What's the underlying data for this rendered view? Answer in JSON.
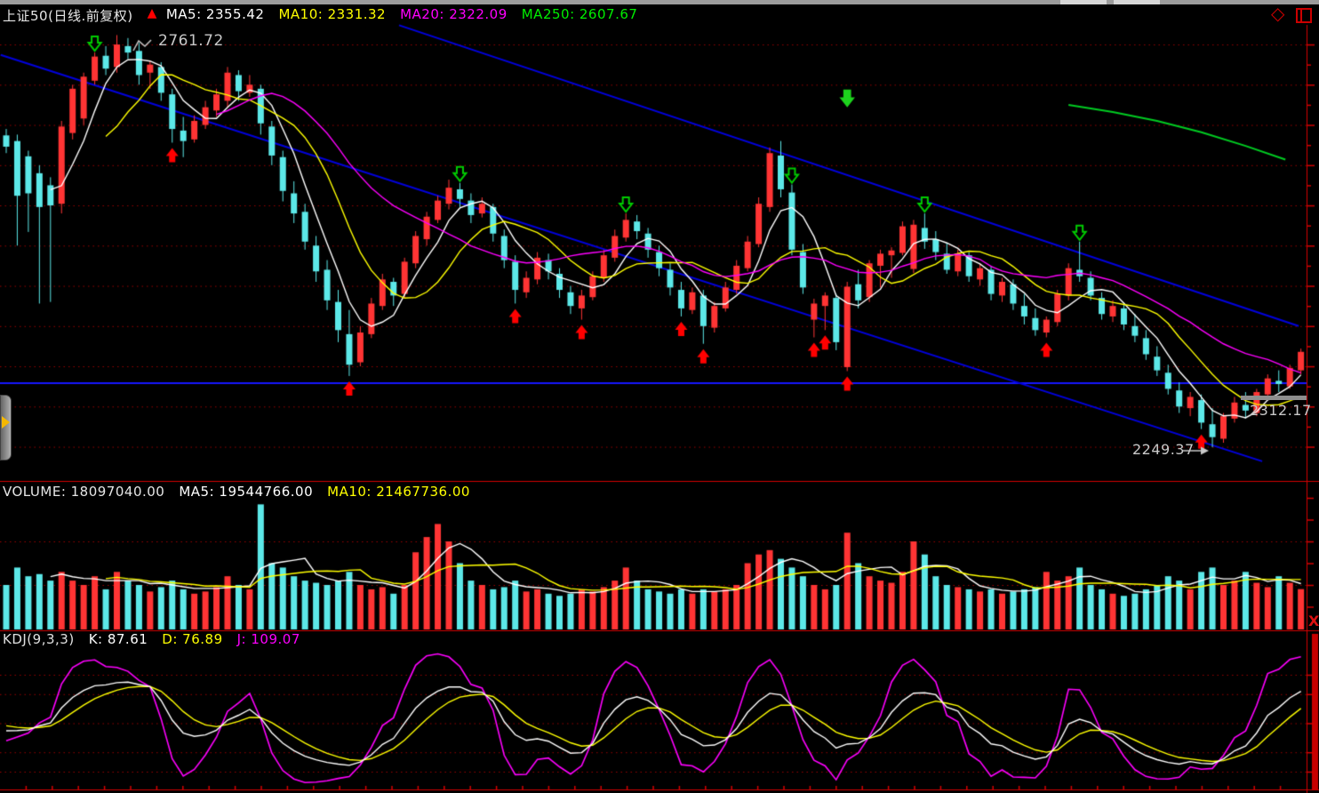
{
  "window": {
    "icons": {
      "diamond": "◇",
      "close_x": "X"
    }
  },
  "header": {
    "title": "上证50(日线.前复权)",
    "signal_arrow": "▲",
    "ma_labels": [
      {
        "text": "MA5: 2355.42",
        "color": "#ffffff"
      },
      {
        "text": "MA10: 2331.32",
        "color": "#ffff00"
      },
      {
        "text": "MA20: 2322.09",
        "color": "#ff00ff"
      },
      {
        "text": "MA250: 2607.67",
        "color": "#00ee00"
      }
    ]
  },
  "volume_header": {
    "labels": [
      {
        "text": "VOLUME: 18097040.00",
        "color": "#e6e6e6"
      },
      {
        "text": "MA5: 19544766.00",
        "color": "#ffffff"
      },
      {
        "text": "MA10: 21467736.00",
        "color": "#ffff00"
      }
    ]
  },
  "kdj_header": {
    "labels": [
      {
        "text": "KDJ(9,3,3)",
        "color": "#e0e0e0"
      },
      {
        "text": "K: 87.61",
        "color": "#ffffff"
      },
      {
        "text": "D: 76.89",
        "color": "#ffff00"
      },
      {
        "text": "J: 109.07",
        "color": "#ff00ff"
      }
    ]
  },
  "annotations": {
    "peak_label": "2761.72",
    "level_label": "2312.17",
    "low_label": "2249.37"
  },
  "chart_data": {
    "type": "candlestick",
    "title": "上证50(日线.前复权)",
    "panels": [
      "price",
      "volume",
      "kdj"
    ],
    "price_axis": {
      "min": 2250,
      "max": 2760,
      "grid_step": 50
    },
    "volume_axis": {
      "grid_lines_millions": [
        20,
        40
      ],
      "tick_step_millions": 10,
      "max_millions": 60
    },
    "kdj_axis": {
      "grid_values": [
        0,
        20,
        50,
        80,
        100
      ]
    },
    "indicator_params": {
      "ma_periods": [
        5,
        10,
        20,
        250
      ],
      "volume_ma_periods": [
        5,
        10
      ],
      "kdj": [
        9,
        3,
        3
      ]
    },
    "candles": [
      [
        2637,
        2645,
        2615,
        2623
      ],
      [
        2630,
        2638,
        2500,
        2562
      ],
      [
        2611,
        2618,
        2517,
        2565
      ],
      [
        2590,
        2600,
        2428,
        2548
      ],
      [
        2575,
        2585,
        2430,
        2550
      ],
      [
        2552,
        2655,
        2540,
        2648
      ],
      [
        2640,
        2700,
        2632,
        2695
      ],
      [
        2658,
        2715,
        2650,
        2710
      ],
      [
        2705,
        2740,
        2700,
        2735
      ],
      [
        2736,
        2748,
        2712,
        2720
      ],
      [
        2722,
        2761.72,
        2715,
        2750
      ],
      [
        2748,
        2758,
        2732,
        2740
      ],
      [
        2742,
        2752,
        2700,
        2712
      ],
      [
        2715,
        2730,
        2695,
        2725
      ],
      [
        2722,
        2728,
        2680,
        2690
      ],
      [
        2688,
        2695,
        2628,
        2645
      ],
      [
        2643,
        2660,
        2610,
        2630
      ],
      [
        2632,
        2662,
        2628,
        2655
      ],
      [
        2650,
        2680,
        2645,
        2672
      ],
      [
        2668,
        2695,
        2660,
        2688
      ],
      [
        2680,
        2722,
        2672,
        2715
      ],
      [
        2712,
        2718,
        2680,
        2692
      ],
      [
        2690,
        2712,
        2685,
        2700
      ],
      [
        2695,
        2700,
        2638,
        2652
      ],
      [
        2648,
        2655,
        2600,
        2612
      ],
      [
        2610,
        2618,
        2555,
        2568
      ],
      [
        2565,
        2580,
        2528,
        2540
      ],
      [
        2542,
        2552,
        2495,
        2505
      ],
      [
        2500,
        2512,
        2455,
        2468
      ],
      [
        2470,
        2482,
        2420,
        2432
      ],
      [
        2430,
        2445,
        2380,
        2395
      ],
      [
        2390,
        2420,
        2338,
        2352
      ],
      [
        2355,
        2400,
        2350,
        2392
      ],
      [
        2390,
        2435,
        2385,
        2428
      ],
      [
        2425,
        2465,
        2420,
        2458
      ],
      [
        2455,
        2460,
        2425,
        2438
      ],
      [
        2440,
        2485,
        2435,
        2480
      ],
      [
        2478,
        2518,
        2472,
        2512
      ],
      [
        2508,
        2542,
        2500,
        2536
      ],
      [
        2532,
        2562,
        2528,
        2556
      ],
      [
        2552,
        2582,
        2545,
        2572
      ],
      [
        2570,
        2578,
        2548,
        2558
      ],
      [
        2556,
        2565,
        2528,
        2538
      ],
      [
        2540,
        2560,
        2535,
        2552
      ],
      [
        2548,
        2552,
        2505,
        2515
      ],
      [
        2512,
        2520,
        2472,
        2482
      ],
      [
        2480,
        2488,
        2428,
        2445
      ],
      [
        2442,
        2468,
        2435,
        2460
      ],
      [
        2458,
        2492,
        2452,
        2485
      ],
      [
        2482,
        2490,
        2458,
        2468
      ],
      [
        2465,
        2472,
        2435,
        2445
      ],
      [
        2442,
        2450,
        2415,
        2425
      ],
      [
        2422,
        2445,
        2408,
        2438
      ],
      [
        2436,
        2468,
        2432,
        2462
      ],
      [
        2460,
        2495,
        2455,
        2488
      ],
      [
        2485,
        2520,
        2480,
        2512
      ],
      [
        2510,
        2540,
        2505,
        2532
      ],
      [
        2530,
        2538,
        2508,
        2518
      ],
      [
        2515,
        2522,
        2485,
        2495
      ],
      [
        2492,
        2500,
        2462,
        2472
      ],
      [
        2470,
        2478,
        2438,
        2448
      ],
      [
        2445,
        2455,
        2412,
        2422
      ],
      [
        2420,
        2448,
        2415,
        2442
      ],
      [
        2438,
        2445,
        2378,
        2400
      ],
      [
        2398,
        2430,
        2392,
        2425
      ],
      [
        2422,
        2455,
        2418,
        2448
      ],
      [
        2445,
        2482,
        2440,
        2475
      ],
      [
        2472,
        2512,
        2468,
        2505
      ],
      [
        2502,
        2560,
        2498,
        2552
      ],
      [
        2548,
        2622,
        2542,
        2615
      ],
      [
        2612,
        2630,
        2560,
        2570
      ],
      [
        2566,
        2576,
        2488,
        2495
      ],
      [
        2492,
        2502,
        2440,
        2448
      ],
      [
        2408,
        2434,
        2386,
        2428
      ],
      [
        2425,
        2442,
        2395,
        2438
      ],
      [
        2435,
        2440,
        2370,
        2380
      ],
      [
        2349,
        2455,
        2344,
        2449
      ],
      [
        2452,
        2470,
        2422,
        2432
      ],
      [
        2436,
        2482,
        2430,
        2478
      ],
      [
        2475,
        2495,
        2448,
        2490
      ],
      [
        2488,
        2498,
        2460,
        2494
      ],
      [
        2491,
        2530,
        2488,
        2524
      ],
      [
        2471,
        2532,
        2466,
        2526
      ],
      [
        2522,
        2540,
        2496,
        2505
      ],
      [
        2508,
        2518,
        2482,
        2492
      ],
      [
        2490,
        2503,
        2465,
        2470
      ],
      [
        2468,
        2495,
        2462,
        2490
      ],
      [
        2488,
        2492,
        2455,
        2462
      ],
      [
        2458,
        2478,
        2450,
        2472
      ],
      [
        2470,
        2475,
        2432,
        2440
      ],
      [
        2438,
        2460,
        2430,
        2455
      ],
      [
        2452,
        2458,
        2420,
        2428
      ],
      [
        2425,
        2440,
        2402,
        2412
      ],
      [
        2410,
        2422,
        2388,
        2395
      ],
      [
        2392,
        2412,
        2386,
        2408
      ],
      [
        2405,
        2445,
        2400,
        2440
      ],
      [
        2438,
        2478,
        2432,
        2472
      ],
      [
        2470,
        2505,
        2455,
        2462
      ],
      [
        2460,
        2468,
        2432,
        2438
      ],
      [
        2435,
        2442,
        2408,
        2415
      ],
      [
        2412,
        2432,
        2405,
        2425
      ],
      [
        2422,
        2428,
        2395,
        2402
      ],
      [
        2400,
        2415,
        2380,
        2388
      ],
      [
        2385,
        2395,
        2358,
        2365
      ],
      [
        2362,
        2375,
        2338,
        2345
      ],
      [
        2342,
        2352,
        2315,
        2322
      ],
      [
        2320,
        2330,
        2292,
        2300
      ],
      [
        2298,
        2318,
        2288,
        2312
      ],
      [
        2308,
        2315,
        2272,
        2280
      ],
      [
        2278,
        2298,
        2249.37,
        2262
      ],
      [
        2260,
        2292,
        2255,
        2288
      ],
      [
        2285,
        2312,
        2280,
        2305
      ],
      [
        2302,
        2318,
        2285,
        2295
      ],
      [
        2292,
        2322,
        2288,
        2318
      ],
      [
        2315,
        2340,
        2310,
        2335
      ],
      [
        2332,
        2345,
        2318,
        2328
      ],
      [
        2325,
        2352,
        2322,
        2348
      ],
      [
        2345,
        2372,
        2340,
        2368
      ]
    ],
    "volumes_millions": [
      20,
      28,
      24,
      25,
      22,
      26,
      22,
      20,
      24,
      18,
      26,
      22,
      20,
      17,
      19,
      22,
      18,
      16,
      17,
      19,
      24,
      20,
      18,
      57,
      30,
      28,
      24,
      22,
      21,
      20,
      22,
      26,
      20,
      18,
      19,
      16,
      20,
      35,
      42,
      48,
      40,
      30,
      22,
      20,
      18,
      19,
      22,
      17,
      18,
      16,
      15,
      16,
      18,
      17,
      19,
      22,
      28,
      22,
      18,
      17,
      16,
      18,
      16,
      18,
      17,
      18,
      20,
      30,
      34,
      36,
      32,
      28,
      24,
      20,
      18,
      20,
      44,
      30,
      24,
      22,
      21,
      26,
      40,
      34,
      24,
      20,
      19,
      18,
      17,
      18,
      16,
      17,
      18,
      19,
      26,
      22,
      24,
      28,
      20,
      18,
      16,
      15,
      16,
      18,
      20,
      24,
      22,
      18,
      26,
      28,
      20,
      22,
      26,
      21,
      19,
      24,
      21,
      18.09704
    ],
    "markers": {
      "buy_indices": [
        15,
        31,
        46,
        52,
        61,
        63,
        73,
        74,
        76,
        94,
        108
      ],
      "sell_indices": [
        8,
        41,
        56,
        71,
        83,
        97
      ],
      "alert_arrow": {
        "index": 76,
        "price": 2672
      }
    },
    "trendlines": [
      {
        "from": [
          -0.5,
          2737
        ],
        "to": [
          113.5,
          2232
        ]
      },
      {
        "from": [
          35.5,
          2774
        ],
        "to": [
          116.8,
          2400
        ]
      }
    ],
    "support_line_price": 2329,
    "ma250_segment": [
      [
        96,
        2675
      ],
      [
        100,
        2666
      ],
      [
        104,
        2655
      ],
      [
        108,
        2641
      ],
      [
        112,
        2624
      ],
      [
        115.6,
        2607
      ]
    ],
    "annotations": {
      "peak": {
        "index": 10,
        "price": 2761.72
      },
      "low": {
        "index": 109,
        "price": 2249.37
      },
      "level_price": 2312.17
    },
    "colors": {
      "up": "#ff3434",
      "down": "#5ce8e8",
      "ma5": "#ffffff",
      "ma10": "#ffff00",
      "ma20": "#ff00ff",
      "ma250": "#00cc22",
      "grid": "#9a0000",
      "axis": "#d40000",
      "trend": "#0000dd",
      "support": "#1616ff",
      "buy_arrow": "#ff0000",
      "sell_arrow": "#00cc00",
      "alert_arrow": "#1dd31d",
      "text_gray": "#c8c8c8"
    }
  }
}
